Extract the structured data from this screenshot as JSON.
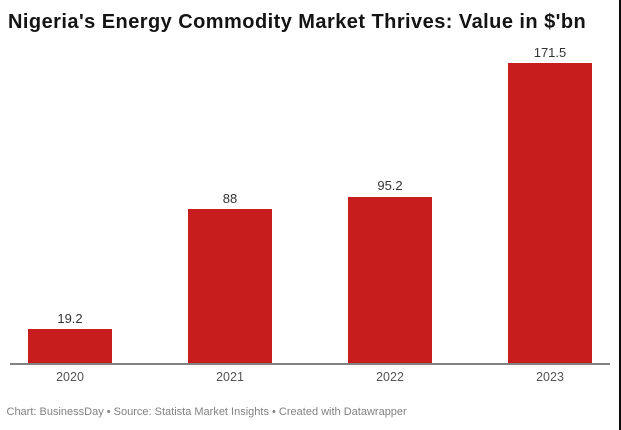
{
  "chart_data": {
    "type": "bar",
    "title": "Nigeria's Energy Commodity Market Thrives: Value in $'bn",
    "categories": [
      "2020",
      "2021",
      "2022",
      "2023"
    ],
    "values": [
      19.2,
      88,
      95.2,
      171.5
    ],
    "value_labels": [
      "19.2",
      "88",
      "95.2",
      "171.5"
    ],
    "xlabel": "",
    "ylabel": "",
    "ylim": [
      0,
      180
    ],
    "grid": false,
    "legend": "none",
    "bar_color": "#c71e1d"
  },
  "footer": {
    "text": "Chart: BusinessDay • Source: Statista Market Insights • Created with Datawrapper"
  },
  "colors": {
    "bar": "#c71e1d",
    "axis_line": "#808080",
    "title_text": "#141414",
    "value_label_text": "#333333",
    "tick_label_text": "#555555",
    "footer_text": "#828282",
    "background": "#ffffff",
    "right_edge_line": "#0a0a0a"
  }
}
